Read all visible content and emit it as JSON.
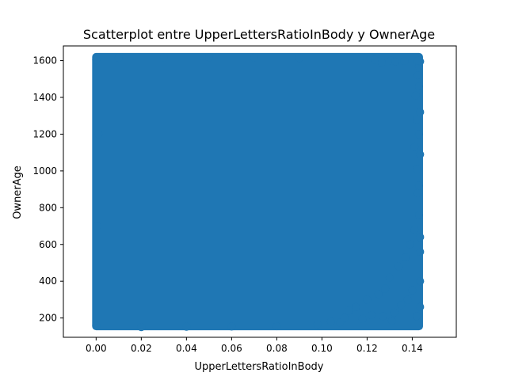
{
  "chart_data": {
    "type": "scatter",
    "title": "Scatterplot entre UpperLettersRatioInBody y OwnerAge",
    "xlabel": "UpperLettersRatioInBody",
    "ylabel": "OwnerAge",
    "xlim": [
      -0.0145,
      0.1595
    ],
    "ylim": [
      95,
      1680
    ],
    "xticks": [
      0.0,
      0.02,
      0.04,
      0.06,
      0.08,
      0.1,
      0.12,
      0.14
    ],
    "xtick_labels": [
      "0.00",
      "0.02",
      "0.04",
      "0.06",
      "0.08",
      "0.10",
      "0.12",
      "0.14"
    ],
    "yticks": [
      200,
      400,
      600,
      800,
      1000,
      1200,
      1400,
      1600
    ],
    "ytick_labels": [
      "200",
      "400",
      "600",
      "800",
      "1000",
      "1200",
      "1400",
      "1600"
    ],
    "grid": false,
    "marker_color": "#1f77b4",
    "dense_region": {
      "x_range": [
        0.0,
        0.143
      ],
      "y_range": [
        155,
        1620
      ]
    },
    "points": [
      [
        0.0,
        160
      ],
      [
        0.0,
        1605
      ],
      [
        0.0005,
        700
      ],
      [
        0.001,
        1200
      ],
      [
        0.01,
        1615
      ],
      [
        0.03,
        1618
      ],
      [
        0.05,
        1617
      ],
      [
        0.07,
        1616
      ],
      [
        0.09,
        1614
      ],
      [
        0.02,
        150
      ],
      [
        0.04,
        152
      ],
      [
        0.06,
        153
      ],
      [
        0.08,
        155
      ],
      [
        0.098,
        165
      ],
      [
        0.104,
        180
      ],
      [
        0.108,
        175
      ],
      [
        0.11,
        200
      ],
      [
        0.112,
        240
      ],
      [
        0.115,
        260
      ],
      [
        0.118,
        195
      ],
      [
        0.12,
        300
      ],
      [
        0.122,
        215
      ],
      [
        0.1215,
        1610
      ],
      [
        0.1235,
        1605
      ],
      [
        0.1265,
        1590
      ],
      [
        0.1305,
        1600
      ],
      [
        0.1325,
        1595
      ],
      [
        0.1365,
        1598
      ],
      [
        0.125,
        330
      ],
      [
        0.127,
        210
      ],
      [
        0.128,
        360
      ],
      [
        0.13,
        420
      ],
      [
        0.131,
        185
      ],
      [
        0.132,
        230
      ],
      [
        0.134,
        480
      ],
      [
        0.135,
        270
      ],
      [
        0.137,
        530
      ],
      [
        0.138,
        300
      ],
      [
        0.139,
        600
      ],
      [
        0.14,
        350
      ],
      [
        0.141,
        680
      ],
      [
        0.142,
        210
      ],
      [
        0.143,
        760
      ],
      [
        0.1425,
        880
      ],
      [
        0.143,
        920
      ],
      [
        0.142,
        1010
      ],
      [
        0.1435,
        1090
      ],
      [
        0.141,
        1130
      ],
      [
        0.143,
        1200
      ],
      [
        0.142,
        1280
      ],
      [
        0.1435,
        1320
      ],
      [
        0.1415,
        1410
      ],
      [
        0.143,
        1460
      ],
      [
        0.1425,
        1520
      ],
      [
        0.143,
        1570
      ],
      [
        0.1435,
        1595
      ],
      [
        0.1425,
        1600
      ],
      [
        0.1435,
        400
      ],
      [
        0.1435,
        560
      ],
      [
        0.1435,
        640
      ],
      [
        0.1435,
        260
      ]
    ]
  }
}
